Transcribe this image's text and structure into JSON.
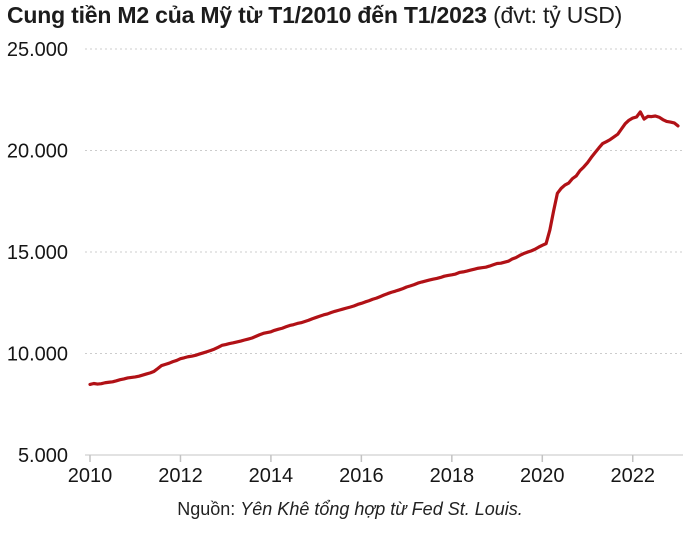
{
  "title": {
    "main": "Cung tiền M2 của Mỹ từ T1/2010 đến T1/2023",
    "unit": " (đvt: tỷ USD)"
  },
  "source": {
    "prefix": "Nguồn: ",
    "text": "Yên Khê tổng hợp từ Fed St. Louis."
  },
  "colors": {
    "line": "#b11116",
    "grid": "#cccccc",
    "axis": "#d9d9d9",
    "tick_mark": "#c3c3c3",
    "text": "#161616"
  },
  "chart_data": {
    "type": "line",
    "title": "Cung tiền M2 của Mỹ từ T1/2010 đến T1/2023",
    "unit_label": "đvt: tỷ USD",
    "xlabel": "",
    "ylabel": "",
    "ylim": [
      5000,
      25000
    ],
    "xlim": [
      2010.0,
      2023.0
    ],
    "grid": "horizontal dotted",
    "legend_position": "none",
    "y_ticks": {
      "values": [
        5000,
        10000,
        15000,
        20000,
        25000
      ],
      "labels": [
        "5.000",
        "10.000",
        "15.000",
        "20.000",
        "25.000"
      ]
    },
    "x_ticks": {
      "values": [
        2010,
        2012,
        2014,
        2016,
        2018,
        2020,
        2022
      ],
      "labels": [
        "2010",
        "2012",
        "2014",
        "2016",
        "2018",
        "2020",
        "2022"
      ]
    },
    "series": [
      {
        "name": "Cung tiền M2 (tỷ USD)",
        "frequency": "monthly",
        "start": "2010-01",
        "end": "2023-01",
        "values": [
          8478,
          8522,
          8493,
          8513,
          8559,
          8584,
          8606,
          8656,
          8711,
          8748,
          8795,
          8822,
          8847,
          8884,
          8936,
          8992,
          9046,
          9121,
          9260,
          9407,
          9464,
          9522,
          9600,
          9657,
          9746,
          9790,
          9840,
          9866,
          9910,
          9972,
          10028,
          10086,
          10147,
          10216,
          10305,
          10401,
          10442,
          10489,
          10525,
          10567,
          10613,
          10664,
          10713,
          10764,
          10843,
          10924,
          10993,
          11034,
          11070,
          11143,
          11196,
          11244,
          11316,
          11381,
          11421,
          11479,
          11516,
          11577,
          11637,
          11714,
          11777,
          11843,
          11905,
          11949,
          12019,
          12080,
          12131,
          12184,
          12236,
          12284,
          12341,
          12416,
          12471,
          12539,
          12598,
          12672,
          12727,
          12802,
          12881,
          12952,
          13017,
          13071,
          13131,
          13197,
          13277,
          13331,
          13392,
          13468,
          13521,
          13570,
          13617,
          13661,
          13697,
          13746,
          13809,
          13846,
          13876,
          13915,
          13991,
          14020,
          14060,
          14109,
          14155,
          14200,
          14226,
          14253,
          14306,
          14370,
          14434,
          14448,
          14498,
          14547,
          14653,
          14724,
          14829,
          14918,
          14990,
          15049,
          15130,
          15235,
          15330,
          15412,
          16082,
          17023,
          17890,
          18134,
          18296,
          18396,
          18615,
          18747,
          19009,
          19188,
          19402,
          19660,
          19896,
          20125,
          20341,
          20434,
          20536,
          20666,
          20800,
          21059,
          21319,
          21492,
          21600,
          21650,
          21900,
          21550,
          21680,
          21670,
          21700,
          21640,
          21520,
          21430,
          21400,
          21360,
          21212
        ]
      }
    ]
  }
}
